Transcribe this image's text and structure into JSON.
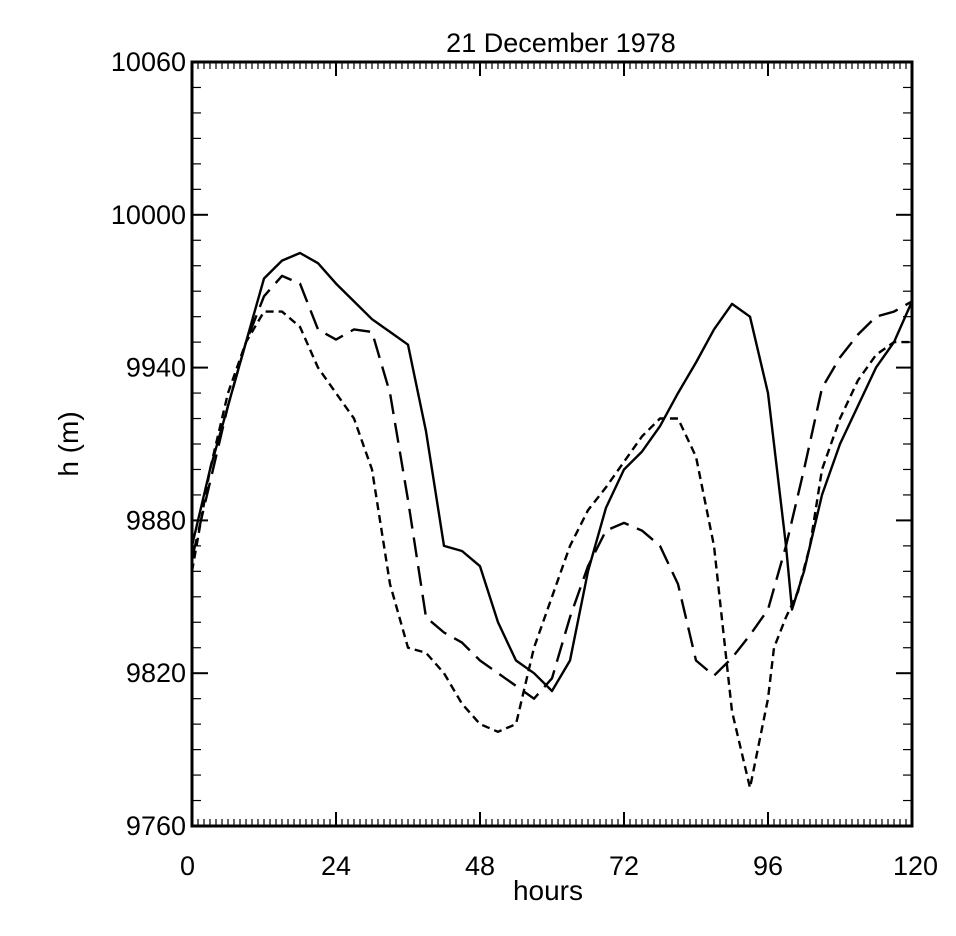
{
  "chart_data": {
    "type": "line",
    "title": "21 December 1978",
    "xlabel": "hours",
    "ylabel": "h (m)",
    "xlim": [
      0,
      120
    ],
    "ylim": [
      9760,
      10060
    ],
    "xticks": [
      "0",
      "24",
      "48",
      "72",
      "96",
      "120"
    ],
    "yticks": [
      "9760",
      "9820",
      "9880",
      "9940",
      "10000",
      "10060"
    ],
    "xtick_values": [
      0,
      24,
      48,
      72,
      96,
      120
    ],
    "ytick_values": [
      9760,
      9820,
      9880,
      9940,
      10000,
      10060
    ],
    "grid": false,
    "series": [
      {
        "name": "solid",
        "style": "solid",
        "x": [
          0,
          3,
          6,
          9,
          12,
          15,
          18,
          21,
          24,
          27,
          30,
          33,
          36,
          39,
          42,
          45,
          48,
          51,
          54,
          57,
          60,
          63,
          66,
          69,
          72,
          75,
          78,
          81,
          84,
          87,
          90,
          93,
          96,
          99,
          100,
          102,
          105,
          108,
          111,
          114,
          117,
          120
        ],
        "y": [
          9870,
          9900,
          9925,
          9950,
          9975,
          9982,
          9985,
          9981,
          9973,
          9966,
          9959,
          9954,
          9949,
          9915,
          9870,
          9868,
          9862,
          9840,
          9825,
          9820,
          9813,
          9825,
          9860,
          9885,
          9900,
          9907,
          9917,
          9930,
          9942,
          9955,
          9965,
          9960,
          9930,
          9870,
          9845,
          9860,
          9890,
          9910,
          9925,
          9940,
          9950,
          9966
        ]
      },
      {
        "name": "long-dash",
        "style": "long-dash",
        "x": [
          0,
          3,
          6,
          9,
          12,
          15,
          18,
          21,
          24,
          27,
          30,
          33,
          36,
          39,
          42,
          45,
          48,
          51,
          54,
          57,
          60,
          63,
          66,
          69,
          72,
          75,
          78,
          81,
          84,
          87,
          90,
          93,
          96,
          99,
          102,
          105,
          108,
          111,
          114,
          117,
          120
        ],
        "y": [
          9865,
          9895,
          9925,
          9950,
          9968,
          9976,
          9973,
          9955,
          9951,
          9955,
          9954,
          9930,
          9888,
          9842,
          9836,
          9832,
          9825,
          9820,
          9815,
          9810,
          9818,
          9842,
          9862,
          9876,
          9879,
          9876,
          9870,
          9855,
          9825,
          9819,
          9826,
          9835,
          9845,
          9870,
          9900,
          9932,
          9944,
          9953,
          9960,
          9962,
          9966
        ]
      },
      {
        "name": "short-dash",
        "style": "short-dash",
        "x": [
          0,
          3,
          6,
          9,
          12,
          15,
          18,
          21,
          24,
          27,
          30,
          33,
          36,
          39,
          42,
          45,
          48,
          51,
          54,
          57,
          60,
          63,
          66,
          69,
          72,
          75,
          78,
          81,
          84,
          87,
          90,
          93,
          96,
          97,
          99,
          101,
          103,
          105,
          108,
          111,
          114,
          117,
          120
        ],
        "y": [
          9860,
          9900,
          9930,
          9950,
          9962,
          9962,
          9956,
          9940,
          9930,
          9920,
          9900,
          9855,
          9830,
          9828,
          9820,
          9808,
          9800,
          9797,
          9800,
          9830,
          9850,
          9870,
          9884,
          9893,
          9903,
          9913,
          9920,
          9920,
          9905,
          9870,
          9805,
          9775,
          9810,
          9830,
          9842,
          9852,
          9870,
          9900,
          9920,
          9935,
          9945,
          9950,
          9950
        ]
      }
    ]
  }
}
